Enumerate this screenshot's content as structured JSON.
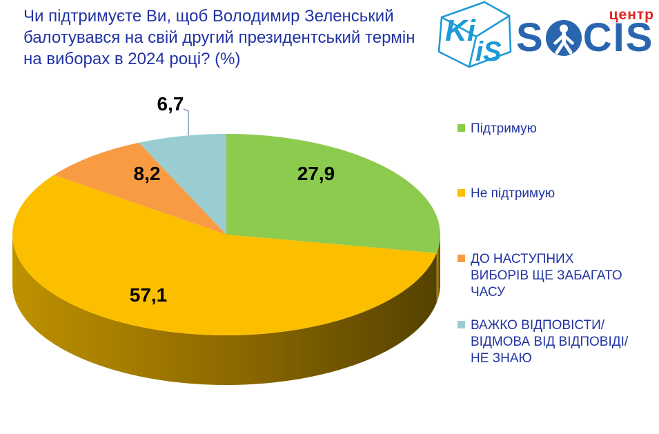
{
  "title": {
    "text": "Чи підтримуєте Ви, щоб Володимир Зеленський\nбалотувався на свій другий президентський термін\nна виборах в 2024 році? (%)"
  },
  "logos": {
    "kiis": {
      "left_letters": "Ki",
      "right_letters": "iS",
      "color": "#1D9AD7"
    },
    "socis": {
      "s": "S",
      "cis": "CIS",
      "center_label": "центр",
      "blue": "#2A66B0",
      "red": "#E3231D"
    }
  },
  "legend": {
    "items": [
      {
        "label": "Підтримую"
      },
      {
        "label": "Не підтримую"
      },
      {
        "label": "ДО НАСТУПНИХ\nВИБОРІВ ЩЕ ЗАБАГАТО\nЧАСУ"
      },
      {
        "label": "ВАЖКО ВІДПОВІСТИ/\nВІДМОВА ВІД ВІДПОВІДІ/\nНЕ ЗНАЮ"
      }
    ]
  },
  "theme": {
    "background": "#FFFFFF",
    "title_color": "#2133A3",
    "legend_text_color": "#2133A3",
    "value_label_color": "#000000"
  },
  "chart_data": {
    "type": "pie",
    "style": "3d",
    "title": "Чи підтримуєте Ви, щоб Володимир Зеленський балотувався на свій другий президентський термін на виборах в 2024 році? (%)",
    "categories": [
      "Підтримую",
      "Не підтримую",
      "ДО НАСТУПНИХ ВИБОРІВ ЩЕ ЗАБАГАТО ЧАСУ",
      "ВАЖКО ВІДПОВІСТИ/ ВІДМОВА ВІД ВІДПОВІДІ/ НЕ ЗНАЮ"
    ],
    "values": [
      27.9,
      57.1,
      8.2,
      6.7
    ],
    "display_values": [
      "27,9",
      "57,1",
      "8,2",
      "6,7"
    ],
    "unit": "%",
    "colors": [
      "#8CCB4E",
      "#FBBF00",
      "#F89B43",
      "#99CDD2"
    ],
    "leader_line_color": "#8296BE",
    "start": "top-clockwise",
    "legend_position": "right",
    "grid": false
  }
}
